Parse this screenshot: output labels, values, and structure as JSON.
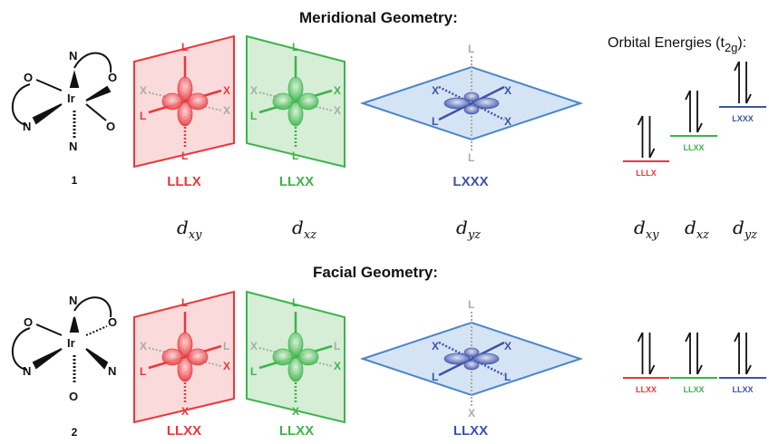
{
  "headers": {
    "meridional": "Meridional Geometry:",
    "facial": "Facial Geometry:"
  },
  "energy_title": {
    "main": "Orbital Energies (t",
    "sub": "2g",
    "close": "):"
  },
  "atoms": {
    "metal": "Ir",
    "oxygen": "O",
    "nitrogen": "N"
  },
  "compounds": {
    "meridional": "1",
    "facial": "2"
  },
  "colors": {
    "xy": "#e8383d",
    "xz": "#3cb44b",
    "yz": "#3d52a8"
  },
  "orbitals": [
    {
      "base": "d",
      "sub": "xy"
    },
    {
      "base": "d",
      "sub": "xz"
    },
    {
      "base": "d",
      "sub": "yz"
    }
  ],
  "meridional": {
    "planes": [
      {
        "top": "L",
        "left_top": "X",
        "right_top": "X",
        "left": "L",
        "right": "X",
        "bottom": "L"
      },
      {
        "top": "L",
        "left_top": "X",
        "right_top": "X",
        "left": "L",
        "right": "X",
        "bottom": "L"
      },
      {
        "top": "L",
        "left": "X",
        "right_top": "X",
        "left_bottom": "L",
        "right": "X",
        "bottom": "L"
      }
    ],
    "captions": [
      "LLLX",
      "LLXX",
      "LXXX"
    ],
    "levels": [
      "LLLX",
      "LLXX",
      "LXXX"
    ]
  },
  "facial": {
    "planes": [
      {
        "top": "L",
        "left_top": "X",
        "right_top": "X",
        "left": "L",
        "right": "L",
        "bottom": "X"
      },
      {
        "top": "L",
        "left_top": "X",
        "right_top": "X",
        "left": "L",
        "right": "L",
        "bottom": "X"
      },
      {
        "top": "L",
        "left": "X",
        "right_top": "X",
        "left_bottom": "L",
        "right": "L",
        "bottom": "X"
      }
    ],
    "captions": [
      "LLXX",
      "LLXX",
      "LLXX"
    ],
    "levels": [
      "LLXX",
      "LLXX",
      "LLXX"
    ]
  }
}
